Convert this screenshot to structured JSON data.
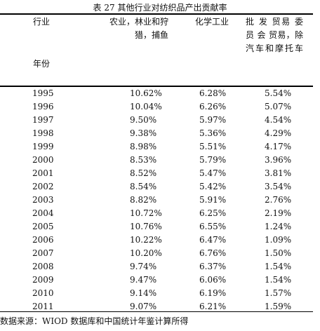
{
  "caption": "表 27   其他行业对纺织品产出贡献率",
  "headers": {
    "row_label": "行业",
    "year_label": "年份",
    "agri": "农业，林业和狩猎，捕鱼",
    "chem": "化学工业",
    "trade": "批 发 贸易 委 员 会 贸易，除汽车和摩托车"
  },
  "rows": [
    {
      "year": "1995",
      "agri": "10.62%",
      "chem": "6.28%",
      "trade": "5.54%"
    },
    {
      "year": "1996",
      "agri": "10.04%",
      "chem": "6.26%",
      "trade": "5.07%"
    },
    {
      "year": "1997",
      "agri": "9.50%",
      "chem": "5.97%",
      "trade": "4.54%"
    },
    {
      "year": "1998",
      "agri": "9.38%",
      "chem": "5.36%",
      "trade": "4.29%"
    },
    {
      "year": "1999",
      "agri": "8.98%",
      "chem": "5.51%",
      "trade": "4.17%"
    },
    {
      "year": "2000",
      "agri": "8.53%",
      "chem": "5.79%",
      "trade": "3.96%"
    },
    {
      "year": "2001",
      "agri": "8.52%",
      "chem": "5.47%",
      "trade": "3.81%"
    },
    {
      "year": "2002",
      "agri": "8.54%",
      "chem": "5.42%",
      "trade": "3.54%"
    },
    {
      "year": "2003",
      "agri": "8.82%",
      "chem": "5.91%",
      "trade": "2.76%"
    },
    {
      "year": "2004",
      "agri": "10.72%",
      "chem": "6.25%",
      "trade": "2.19%"
    },
    {
      "year": "2005",
      "agri": "10.76%",
      "chem": "6.55%",
      "trade": "1.24%"
    },
    {
      "year": "2006",
      "agri": "10.22%",
      "chem": "6.47%",
      "trade": "1.09%"
    },
    {
      "year": "2007",
      "agri": "10.20%",
      "chem": "6.76%",
      "trade": "1.50%"
    },
    {
      "year": "2008",
      "agri": "9.74%",
      "chem": "6.37%",
      "trade": "1.54%"
    },
    {
      "year": "2009",
      "agri": "9.47%",
      "chem": "6.06%",
      "trade": "1.54%"
    },
    {
      "year": "2010",
      "agri": "9.14%",
      "chem": "6.19%",
      "trade": "1.57%"
    },
    {
      "year": "2011",
      "agri": "9.07%",
      "chem": "6.21%",
      "trade": "1.59%"
    }
  ],
  "source": "数据来源：WIOD 数据库和中国统计年鉴计算所得"
}
